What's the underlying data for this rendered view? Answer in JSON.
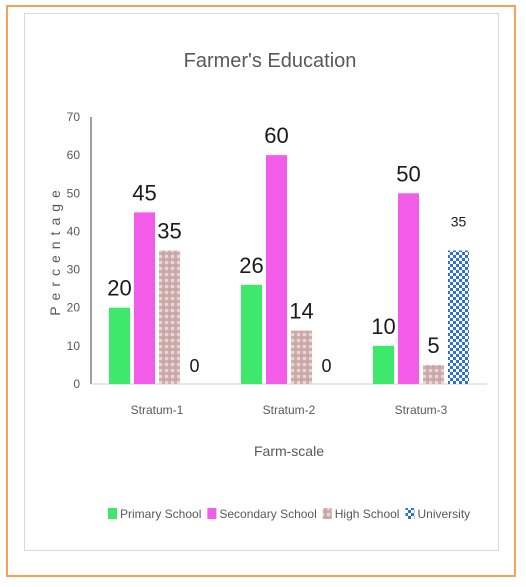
{
  "chart_data": {
    "type": "bar",
    "title": "Farmer's Education",
    "xlabel": "Farm-scale",
    "ylabel": "Percentage",
    "ylim": [
      0,
      70
    ],
    "yticks": [
      0,
      10,
      20,
      30,
      40,
      50,
      60,
      70
    ],
    "grid": false,
    "legend_position": "bottom",
    "categories": [
      "Stratum-1",
      "Stratum-2",
      "Stratum-3"
    ],
    "series": [
      {
        "name": "Primary School",
        "values": [
          20,
          26,
          10
        ],
        "color": "#3de86a",
        "pattern": "solid"
      },
      {
        "name": "Secondary School",
        "values": [
          45,
          60,
          50
        ],
        "color": "#f25ce8",
        "pattern": "solid"
      },
      {
        "name": "High School",
        "values": [
          35,
          14,
          5
        ],
        "color": "#d6b3b3",
        "pattern": "plaid"
      },
      {
        "name": "University",
        "values": [
          0,
          0,
          35
        ],
        "color": "#2f6fd1",
        "pattern": "checker"
      }
    ]
  }
}
